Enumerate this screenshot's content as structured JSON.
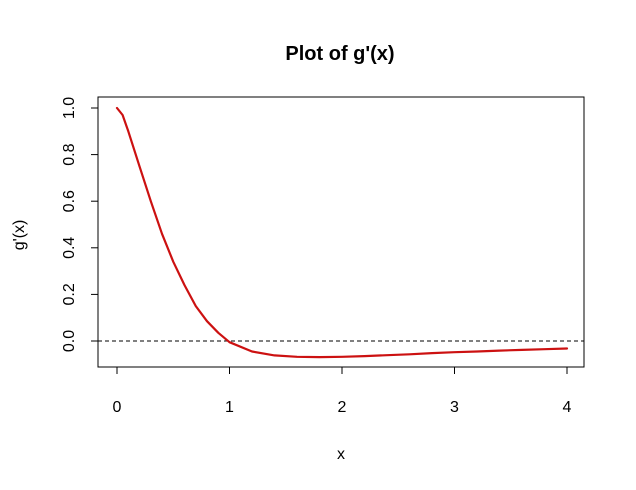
{
  "chart_data": {
    "type": "line",
    "title": "Plot of g'(x)",
    "xlabel": "x",
    "ylabel": "g'(x)",
    "xlim": [
      0,
      4
    ],
    "ylim": [
      -0.1,
      1.0
    ],
    "x_ticks": [
      0,
      1,
      2,
      3,
      4
    ],
    "x_tick_labels": [
      "0",
      "1",
      "2",
      "3",
      "4"
    ],
    "y_ticks": [
      0.0,
      0.2,
      0.4,
      0.6,
      0.8,
      1.0
    ],
    "y_tick_labels": [
      "0.0",
      "0.2",
      "0.4",
      "0.6",
      "0.8",
      "1.0"
    ],
    "grid": false,
    "series": [
      {
        "color": "#cc1111",
        "x": [
          0,
          0.05,
          0.1,
          0.2,
          0.3,
          0.4,
          0.5,
          0.6,
          0.7,
          0.8,
          0.9,
          1.0,
          1.2,
          1.4,
          1.6,
          1.8,
          2.0,
          2.2,
          2.4,
          2.6,
          2.8,
          3.0,
          3.2,
          3.4,
          3.6,
          3.8,
          4.0
        ],
        "y": [
          1.0,
          0.97,
          0.9,
          0.75,
          0.6,
          0.46,
          0.34,
          0.24,
          0.15,
          0.085,
          0.035,
          -0.005,
          -0.045,
          -0.062,
          -0.068,
          -0.069,
          -0.068,
          -0.065,
          -0.061,
          -0.057,
          -0.052,
          -0.048,
          -0.045,
          -0.041,
          -0.038,
          -0.035,
          -0.032
        ]
      }
    ],
    "reference_line": {
      "y": 0,
      "style": "dashed",
      "color": "#000000"
    }
  }
}
